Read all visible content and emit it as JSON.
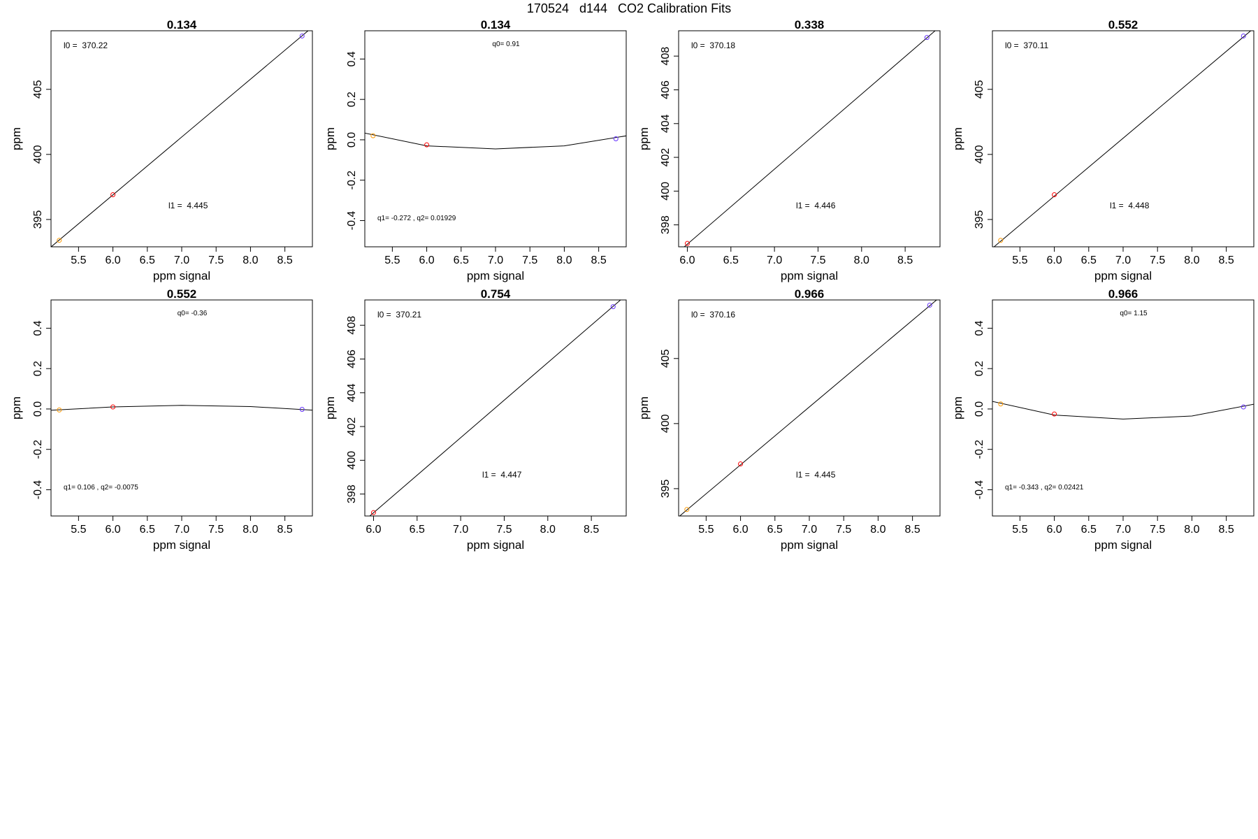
{
  "page": {
    "title": "170524   d144   CO2 Calibration Fits"
  },
  "colors": {
    "axis": "#000000",
    "fit_line": "#000000",
    "point_low": "#ff9900",
    "point_mid": "#ff0000",
    "point_high": "#6633ff"
  },
  "chart_data": [
    {
      "type": "scatter",
      "title": "0.134",
      "xlabel": "ppm signal",
      "ylabel": "ppm",
      "xlim": [
        5.1,
        8.9
      ],
      "ylim": [
        392.9,
        409.5
      ],
      "xticks": [
        "5.5",
        "6.0",
        "6.5",
        "7.0",
        "7.5",
        "8.0",
        "8.5"
      ],
      "yticks": [
        "395",
        "400",
        "405"
      ],
      "points": [
        {
          "x": 5.22,
          "y": 393.4,
          "color": "#ff9900"
        },
        {
          "x": 6.0,
          "y": 396.9,
          "color": "#ff0000"
        },
        {
          "x": 8.75,
          "y": 409.1,
          "color": "#6633ff"
        }
      ],
      "fit": {
        "kind": "linear",
        "intercept": 370.22,
        "slope": 4.445
      },
      "annotations": [
        {
          "text": "l0 =  370.22",
          "pos": "top-left",
          "size": "normal"
        },
        {
          "text": "l1 =  4.445",
          "pos": "middle-right",
          "size": "normal"
        }
      ]
    },
    {
      "type": "scatter",
      "title": "0.134",
      "xlabel": "ppm signal",
      "ylabel": "ppm",
      "xlim": [
        5.1,
        8.9
      ],
      "ylim": [
        -0.53,
        0.54
      ],
      "xticks": [
        "5.5",
        "6.0",
        "6.5",
        "7.0",
        "7.5",
        "8.0",
        "8.5"
      ],
      "yticks": [
        "-0.4",
        "-0.2",
        "0.0",
        "0.2",
        "0.4"
      ],
      "points": [
        {
          "x": 5.22,
          "y": 0.02,
          "color": "#ff9900"
        },
        {
          "x": 6.0,
          "y": -0.025,
          "color": "#ff0000"
        },
        {
          "x": 8.75,
          "y": 0.005,
          "color": "#6633ff"
        }
      ],
      "fit": {
        "kind": "polyline",
        "x": [
          5.0,
          6.0,
          7.0,
          8.0,
          9.0
        ],
        "y": [
          0.04,
          -0.03,
          -0.045,
          -0.03,
          0.025
        ]
      },
      "annotations": [
        {
          "text": "q0= 0.91",
          "pos": "top-center",
          "size": "small"
        },
        {
          "text": "q1= -0.272 , q2= 0.01929",
          "pos": "bottom-left",
          "size": "small"
        }
      ]
    },
    {
      "type": "scatter",
      "title": "0.338",
      "xlabel": "ppm signal",
      "ylabel": "ppm",
      "xlim": [
        5.9,
        8.9
      ],
      "ylim": [
        396.7,
        409.5
      ],
      "xticks": [
        "6.0",
        "6.5",
        "7.0",
        "7.5",
        "8.0",
        "8.5"
      ],
      "yticks": [
        "398",
        "400",
        "402",
        "404",
        "406",
        "408"
      ],
      "points": [
        {
          "x": 6.0,
          "y": 396.9,
          "color": "#ff0000"
        },
        {
          "x": 8.75,
          "y": 409.1,
          "color": "#6633ff"
        }
      ],
      "fit": {
        "kind": "linear",
        "intercept": 370.18,
        "slope": 4.446
      },
      "annotations": [
        {
          "text": "l0 =  370.18",
          "pos": "top-left",
          "size": "normal"
        },
        {
          "text": "l1 =  4.446",
          "pos": "middle-right",
          "size": "normal"
        }
      ]
    },
    {
      "type": "scatter",
      "title": "0.552",
      "xlabel": "ppm signal",
      "ylabel": "ppm",
      "xlim": [
        5.1,
        8.9
      ],
      "ylim": [
        392.9,
        409.5
      ],
      "xticks": [
        "5.5",
        "6.0",
        "6.5",
        "7.0",
        "7.5",
        "8.0",
        "8.5"
      ],
      "yticks": [
        "395",
        "400",
        "405"
      ],
      "points": [
        {
          "x": 5.22,
          "y": 393.4,
          "color": "#ff9900"
        },
        {
          "x": 6.0,
          "y": 396.9,
          "color": "#ff0000"
        },
        {
          "x": 8.75,
          "y": 409.1,
          "color": "#6633ff"
        }
      ],
      "fit": {
        "kind": "linear",
        "intercept": 370.11,
        "slope": 4.448
      },
      "annotations": [
        {
          "text": "l0 =  370.11",
          "pos": "top-left",
          "size": "normal"
        },
        {
          "text": "l1 =  4.448",
          "pos": "middle-right",
          "size": "normal"
        }
      ]
    },
    {
      "type": "scatter",
      "title": "0.552",
      "xlabel": "ppm signal",
      "ylabel": "ppm",
      "xlim": [
        5.1,
        8.9
      ],
      "ylim": [
        -0.53,
        0.54
      ],
      "xticks": [
        "5.5",
        "6.0",
        "6.5",
        "7.0",
        "7.5",
        "8.0",
        "8.5"
      ],
      "yticks": [
        "-0.4",
        "-0.2",
        "0.0",
        "0.2",
        "0.4"
      ],
      "points": [
        {
          "x": 5.22,
          "y": -0.005,
          "color": "#ff9900"
        },
        {
          "x": 6.0,
          "y": 0.01,
          "color": "#ff0000"
        },
        {
          "x": 8.75,
          "y": -0.002,
          "color": "#6633ff"
        }
      ],
      "fit": {
        "kind": "polyline",
        "x": [
          5.0,
          6.0,
          7.0,
          8.0,
          9.0
        ],
        "y": [
          -0.008,
          0.01,
          0.018,
          0.012,
          -0.008
        ]
      },
      "annotations": [
        {
          "text": "q0= -0.36",
          "pos": "top-center",
          "size": "small"
        },
        {
          "text": "q1= 0.106 , q2= -0.0075",
          "pos": "bottom-left",
          "size": "small"
        }
      ]
    },
    {
      "type": "scatter",
      "title": "0.754",
      "xlabel": "ppm signal",
      "ylabel": "ppm",
      "xlim": [
        5.9,
        8.9
      ],
      "ylim": [
        396.7,
        409.5
      ],
      "xticks": [
        "6.0",
        "6.5",
        "7.0",
        "7.5",
        "8.0",
        "8.5"
      ],
      "yticks": [
        "398",
        "400",
        "402",
        "404",
        "406",
        "408"
      ],
      "points": [
        {
          "x": 6.0,
          "y": 396.9,
          "color": "#ff0000"
        },
        {
          "x": 8.75,
          "y": 409.1,
          "color": "#6633ff"
        }
      ],
      "fit": {
        "kind": "linear",
        "intercept": 370.21,
        "slope": 4.447
      },
      "annotations": [
        {
          "text": "l0 =  370.21",
          "pos": "top-left",
          "size": "normal"
        },
        {
          "text": "l1 =  4.447",
          "pos": "middle-right",
          "size": "normal"
        }
      ]
    },
    {
      "type": "scatter",
      "title": "0.966",
      "xlabel": "ppm signal",
      "ylabel": "ppm",
      "xlim": [
        5.1,
        8.9
      ],
      "ylim": [
        392.9,
        409.5
      ],
      "xticks": [
        "5.5",
        "6.0",
        "6.5",
        "7.0",
        "7.5",
        "8.0",
        "8.5"
      ],
      "yticks": [
        "395",
        "400",
        "405"
      ],
      "points": [
        {
          "x": 5.22,
          "y": 393.4,
          "color": "#ff9900"
        },
        {
          "x": 6.0,
          "y": 396.9,
          "color": "#ff0000"
        },
        {
          "x": 8.75,
          "y": 409.1,
          "color": "#6633ff"
        }
      ],
      "fit": {
        "kind": "linear",
        "intercept": 370.16,
        "slope": 4.445
      },
      "annotations": [
        {
          "text": "l0 =  370.16",
          "pos": "top-left",
          "size": "normal"
        },
        {
          "text": "l1 =  4.445",
          "pos": "middle-right",
          "size": "normal"
        }
      ]
    },
    {
      "type": "scatter",
      "title": "0.966",
      "xlabel": "ppm signal",
      "ylabel": "ppm",
      "xlim": [
        5.1,
        8.9
      ],
      "ylim": [
        -0.53,
        0.54
      ],
      "xticks": [
        "5.5",
        "6.0",
        "6.5",
        "7.0",
        "7.5",
        "8.0",
        "8.5"
      ],
      "yticks": [
        "-0.4",
        "-0.2",
        "0.0",
        "0.2",
        "0.4"
      ],
      "points": [
        {
          "x": 5.22,
          "y": 0.025,
          "color": "#ff9900"
        },
        {
          "x": 6.0,
          "y": -0.025,
          "color": "#ff0000"
        },
        {
          "x": 8.75,
          "y": 0.01,
          "color": "#6633ff"
        }
      ],
      "fit": {
        "kind": "polyline",
        "x": [
          5.0,
          6.0,
          7.0,
          8.0,
          9.0
        ],
        "y": [
          0.045,
          -0.03,
          -0.05,
          -0.035,
          0.03
        ]
      },
      "annotations": [
        {
          "text": "q0= 1.15",
          "pos": "top-center",
          "size": "small"
        },
        {
          "text": "q1= -0.343 , q2= 0.02421",
          "pos": "bottom-left",
          "size": "small"
        }
      ]
    }
  ]
}
